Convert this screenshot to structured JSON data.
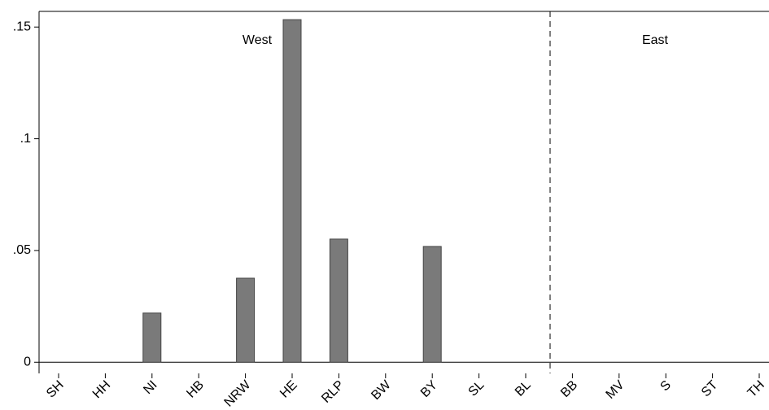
{
  "chart_data": {
    "type": "bar",
    "categories": [
      "SH",
      "HH",
      "NI",
      "HB",
      "NRW",
      "HE",
      "RLP",
      "BW",
      "BY",
      "SL",
      "BL",
      "BB",
      "MV",
      "S",
      "ST",
      "TH"
    ],
    "values": [
      0,
      0,
      0.022,
      0,
      0.0376,
      0.1533,
      0.0551,
      0,
      0.0518,
      0,
      0,
      0,
      0,
      0,
      0,
      0
    ],
    "color": "#7a7a7a",
    "ylim": [
      -0.005,
      0.157
    ],
    "yticks": [
      0,
      {
        "value": 0.05,
        "label": ".05"
      },
      {
        "value": 0.1,
        "label": ".1"
      },
      {
        "value": 0.15,
        "label": ".15"
      }
    ],
    "annotations": [
      "West",
      "East"
    ]
  }
}
